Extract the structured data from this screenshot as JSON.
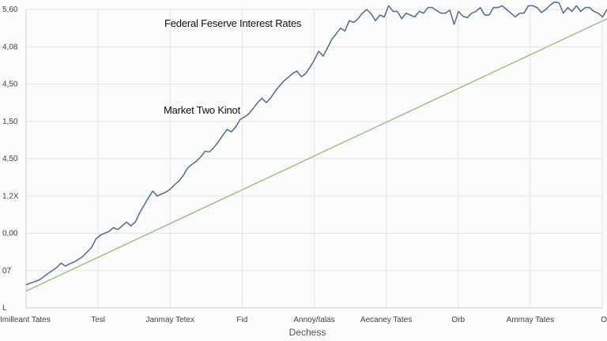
{
  "chart_data": {
    "type": "line",
    "title": "Federal Feserve Interest Rates",
    "annotation": "Market Two Kinot",
    "xlabel": "Dechess",
    "ylabel": "",
    "y_tick_labels": [
      "5,60",
      "4,08",
      "4,50",
      "1,50",
      "4,50",
      "1,2X",
      "0,00",
      "07",
      "L"
    ],
    "x_tick_labels": [
      "Imilleant Tates",
      "Tesl",
      "Janmay Tetex",
      "Fid",
      "Annoy/Ialas",
      "Aecaney Tates",
      "Orb",
      "Ammay Tates",
      "O"
    ],
    "ylim": [
      0,
      8
    ],
    "grid": true,
    "series": [
      {
        "color": "#5a7390",
        "y": [
          0.62,
          0.66,
          0.7,
          0.75,
          0.83,
          0.92,
          1.0,
          1.08,
          1.2,
          1.12,
          1.18,
          1.23,
          1.3,
          1.38,
          1.5,
          1.62,
          1.85,
          1.95,
          2.0,
          2.05,
          2.15,
          2.1,
          2.2,
          2.3,
          2.2,
          2.3,
          2.55,
          2.75,
          2.95,
          3.13,
          3.0,
          3.05,
          3.1,
          3.18,
          3.3,
          3.4,
          3.55,
          3.75,
          3.85,
          3.93,
          4.05,
          4.2,
          4.18,
          4.3,
          4.45,
          4.62,
          4.78,
          4.72,
          4.85,
          5.05,
          5.12,
          5.2,
          5.35,
          5.5,
          5.62,
          5.5,
          5.63,
          5.8,
          5.95,
          6.08,
          6.18,
          6.28,
          6.35,
          6.2,
          6.28,
          6.45,
          6.65,
          6.88,
          6.75,
          6.97,
          7.2,
          7.35,
          7.5,
          7.42,
          7.7,
          7.65,
          7.75,
          7.9,
          8.0,
          7.88,
          7.7,
          7.85,
          7.8,
          8.1,
          7.95,
          7.95,
          7.75,
          7.9,
          7.85,
          7.8,
          7.95,
          7.9,
          8.05,
          8.05,
          7.97,
          7.9,
          7.9,
          7.98,
          7.6,
          7.95,
          7.82,
          7.78,
          7.9,
          7.95,
          8.05,
          7.85,
          7.85,
          8.05,
          8.05,
          8.1,
          8.0,
          7.9,
          7.8,
          7.9,
          7.9,
          8.1,
          8.1,
          8.05,
          7.92,
          8.0,
          8.12,
          8.2,
          8.18,
          7.9,
          8.05,
          7.95,
          8.1,
          7.95,
          8.05,
          8.05,
          7.95,
          7.9,
          7.8,
          8.0
        ]
      },
      {
        "color": "#a6c48a",
        "y_start": 0.45,
        "y_end": 7.75
      }
    ]
  }
}
